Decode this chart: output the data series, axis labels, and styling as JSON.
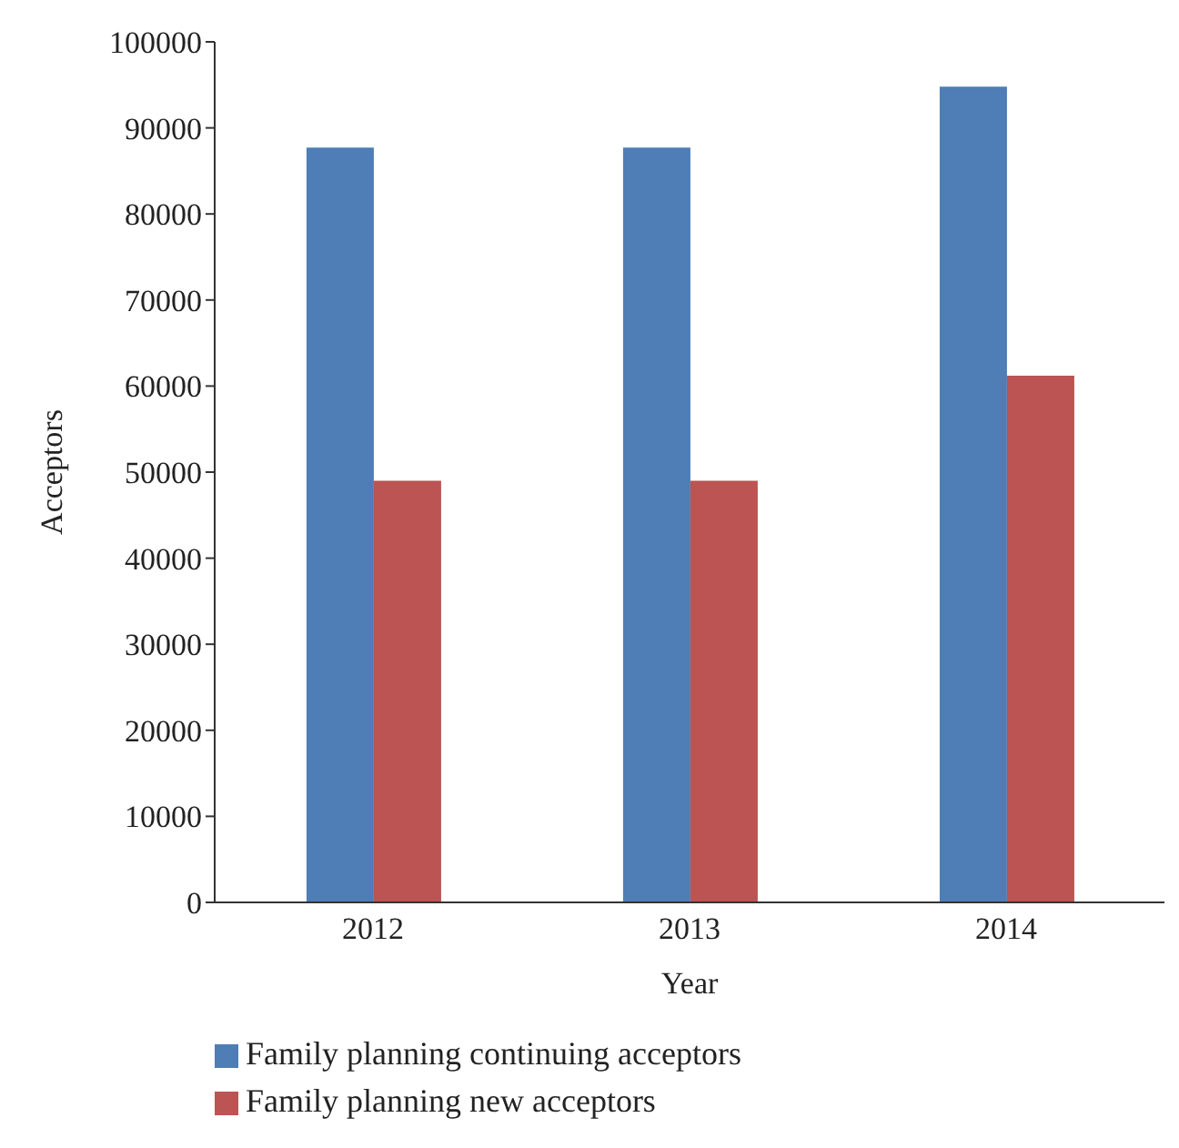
{
  "chart_data": {
    "type": "bar",
    "xlabel": "Year",
    "ylabel": "Acceptors",
    "categories": [
      "2012",
      "2013",
      "2014"
    ],
    "series": [
      {
        "name": "Family planning continuing acceptors",
        "color": "#4f7db5",
        "values": [
          87700,
          87700,
          94800
        ]
      },
      {
        "name": "Family planning new acceptors",
        "color": "#bb5452",
        "values": [
          49000,
          49000,
          61200
        ]
      }
    ],
    "ylim": [
      0,
      100000
    ],
    "yticks": [
      0,
      10000,
      20000,
      30000,
      40000,
      50000,
      60000,
      70000,
      80000,
      90000,
      100000
    ],
    "grid": false,
    "legend": "bottom"
  }
}
